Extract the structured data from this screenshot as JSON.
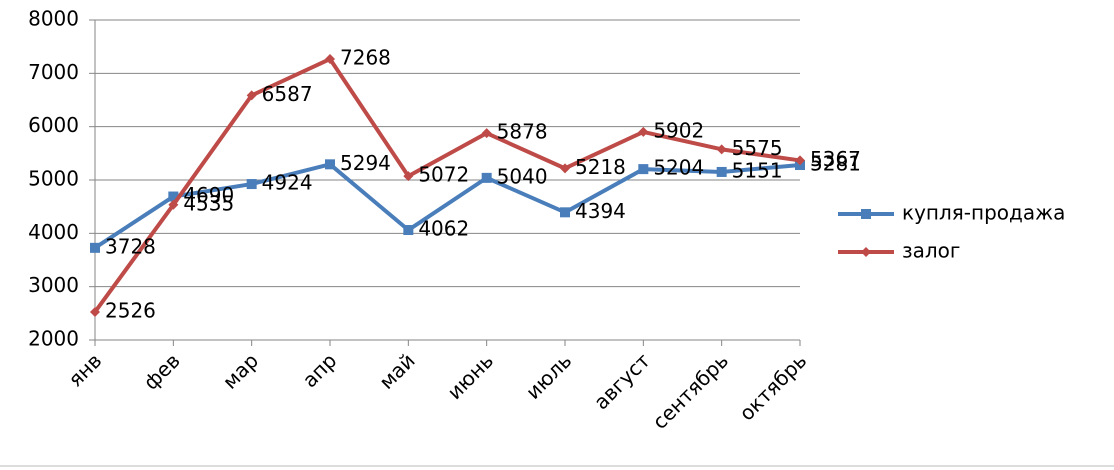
{
  "chart_data": {
    "type": "line",
    "categories": [
      "янв",
      "фев",
      "мар",
      "апр",
      "май",
      "июнь",
      "июль",
      "август",
      "сентябрь",
      "октябрь"
    ],
    "series": [
      {
        "name": "купля-продажа",
        "color": "#4a7ebb",
        "marker": "square",
        "values": [
          3728,
          4690,
          4924,
          5294,
          4062,
          5040,
          4394,
          5204,
          5151,
          5281
        ]
      },
      {
        "name": "залог",
        "color": "#be4b48",
        "marker": "diamond",
        "values": [
          2526,
          4535,
          6587,
          7268,
          5072,
          5878,
          5218,
          5902,
          5575,
          5367
        ]
      }
    ],
    "ylim": [
      2000,
      8000
    ],
    "yticks": [
      2000,
      3000,
      4000,
      5000,
      6000,
      7000,
      8000
    ],
    "grid": true,
    "legend": "right",
    "data_labels": true
  }
}
